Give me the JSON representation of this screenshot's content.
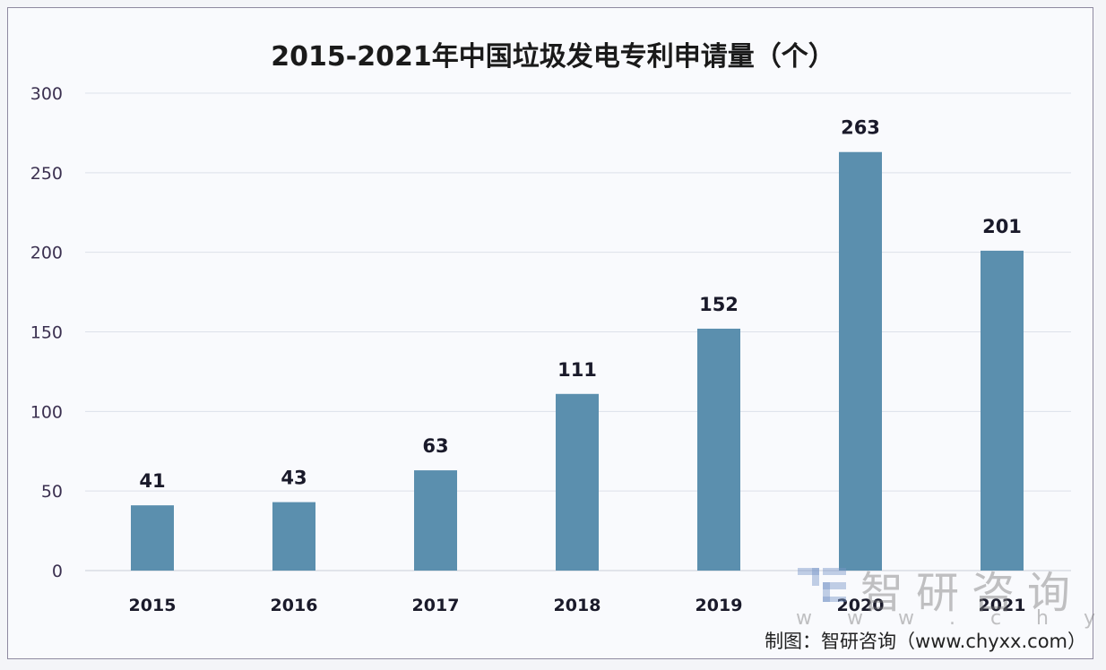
{
  "chart_data": {
    "type": "bar",
    "title": "2015-2021年中国垃圾发电专利申请量（个）",
    "categories": [
      "2015",
      "2016",
      "2017",
      "2018",
      "2019",
      "2020",
      "2021"
    ],
    "values": [
      41,
      43,
      63,
      111,
      152,
      263,
      201
    ],
    "ylim": [
      0,
      300
    ],
    "yticks": [
      0,
      50,
      100,
      150,
      200,
      250,
      300
    ],
    "grid": true,
    "bar_color": "#5b8fae",
    "xlabel": "",
    "ylabel": ""
  },
  "source": "制图：智研咨询（www.chyxx.com）",
  "watermark": {
    "name": "智研咨询",
    "url": "w w w . c h y x x . c o m"
  }
}
